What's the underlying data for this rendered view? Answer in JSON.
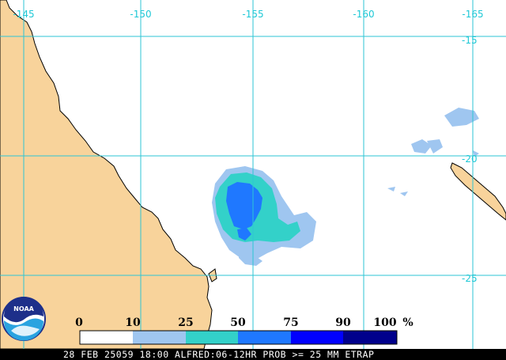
{
  "map": {
    "lon_labels": [
      "-145",
      "-150",
      "-155",
      "-160",
      "-165"
    ],
    "lat_labels": [
      "-15",
      "-20",
      "-25"
    ],
    "colors": {
      "land": "#f8d39b",
      "ocean": "#ffffff",
      "grid": "#2ec6d4",
      "coast": "#000000"
    }
  },
  "legend": {
    "ticks": [
      "0",
      "10",
      "25",
      "50",
      "75",
      "90",
      "100"
    ],
    "unit": "%",
    "bins": [
      {
        "color": "#ffffff"
      },
      {
        "color": "#9fc6f0"
      },
      {
        "color": "#33d1c9"
      },
      {
        "color": "#1f78ff"
      },
      {
        "color": "#0000ff"
      },
      {
        "color": "#00008c"
      }
    ]
  },
  "logo": {
    "text": "NOAA"
  },
  "status_bar": {
    "text": "28 FEB 25059 18:00 ALFRED:06-12HR PROB >= 25 MM ETRAP"
  }
}
